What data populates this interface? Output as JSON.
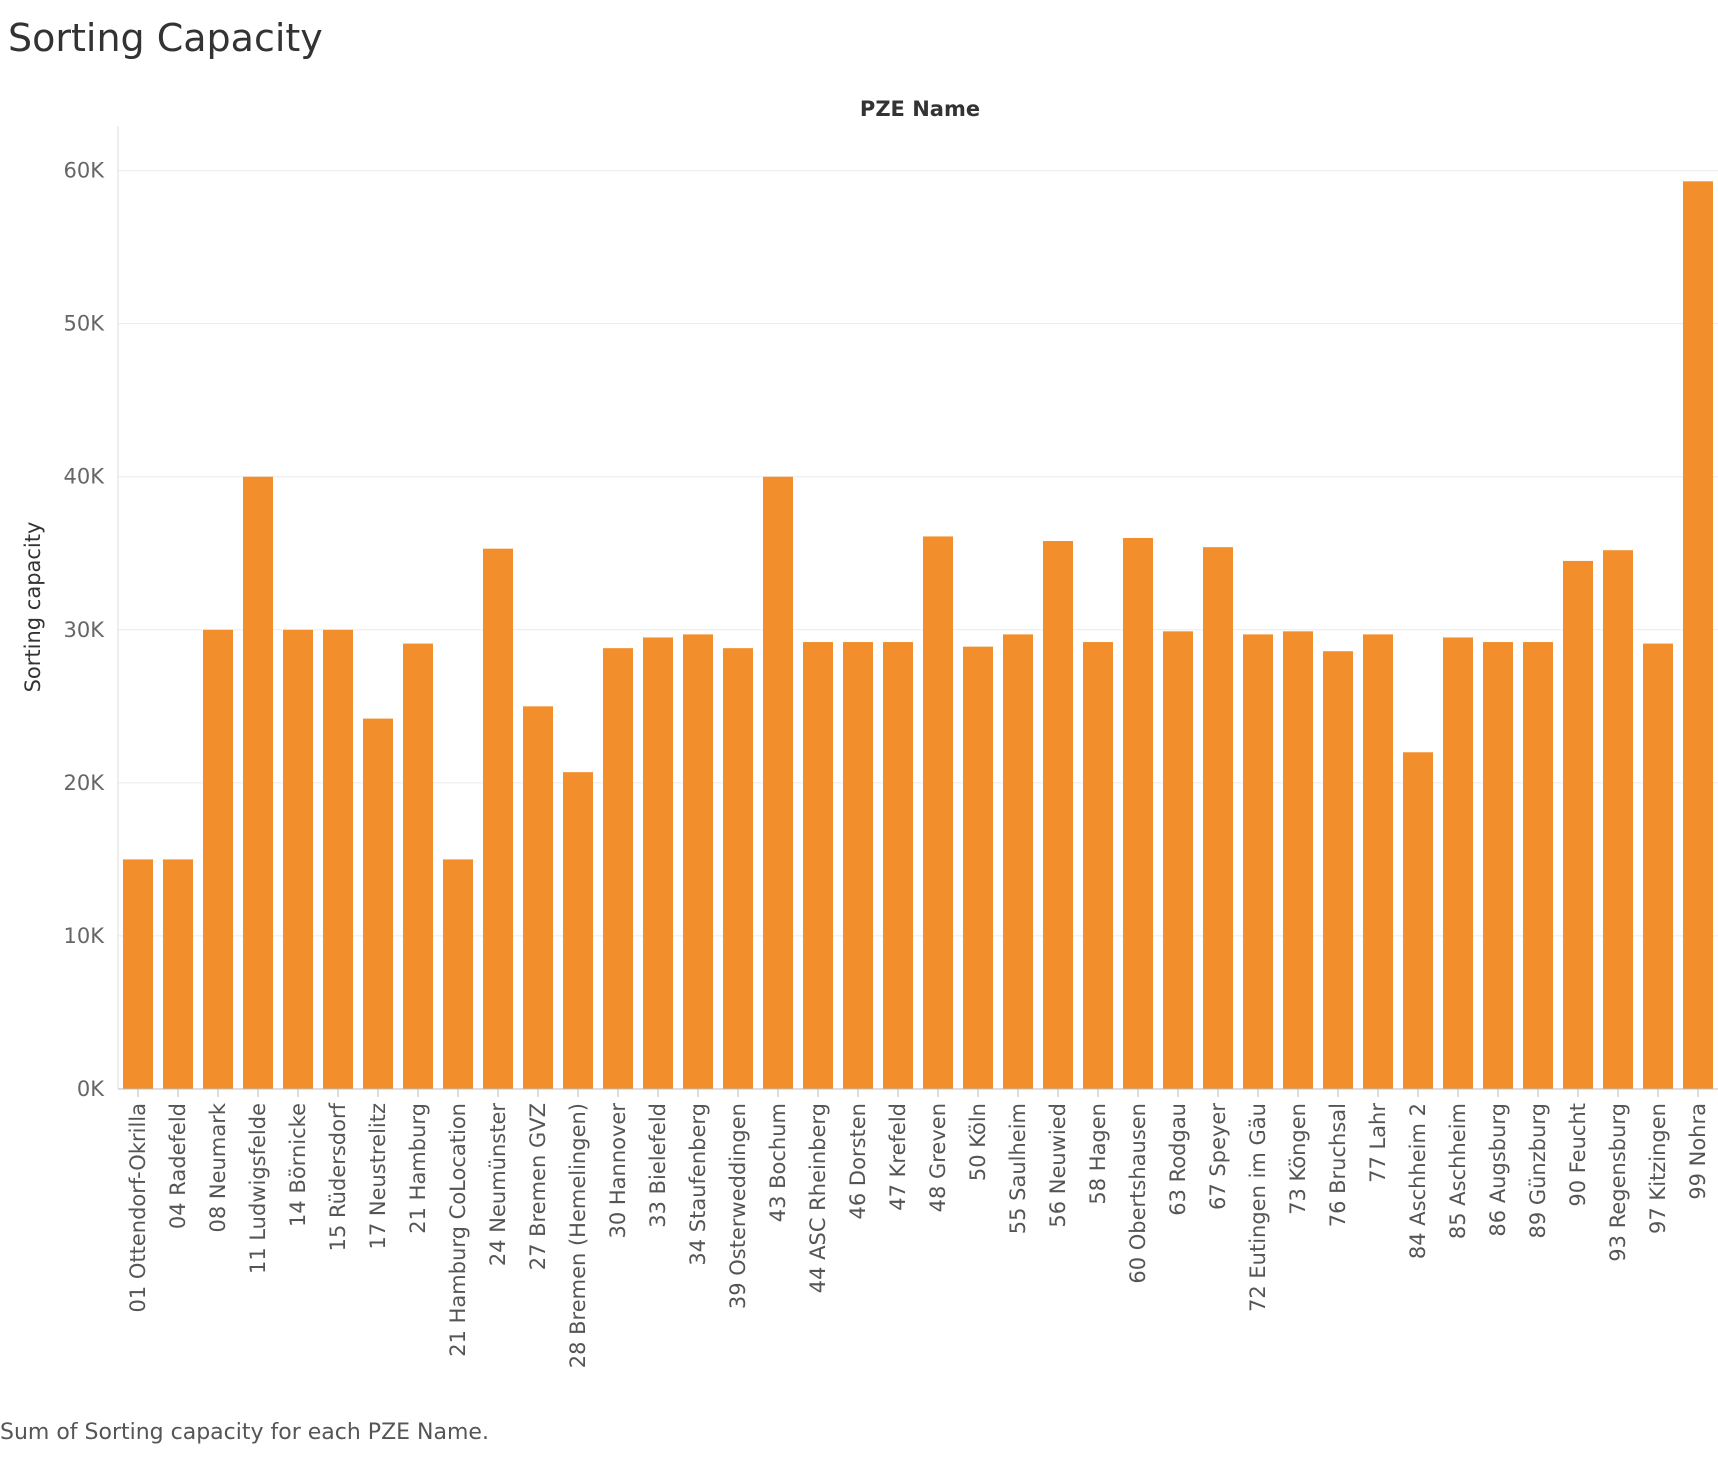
{
  "page": {
    "title": "Sorting Capacity",
    "caption": "Sum of Sorting capacity for each PZE Name."
  },
  "chart_data": {
    "type": "bar",
    "title": "Sorting Capacity",
    "column_header": "PZE Name",
    "xlabel": "PZE Name",
    "ylabel": "Sorting capacity",
    "ylim": [
      0,
      62000
    ],
    "yticks": [
      {
        "value": 0,
        "label": "0K"
      },
      {
        "value": 10000,
        "label": "10K"
      },
      {
        "value": 20000,
        "label": "20K"
      },
      {
        "value": 30000,
        "label": "30K"
      },
      {
        "value": 40000,
        "label": "40K"
      },
      {
        "value": 50000,
        "label": "50K"
      },
      {
        "value": 60000,
        "label": "60K"
      }
    ],
    "grid": true,
    "bar_color": "#F28E2B",
    "categories": [
      "01 Ottendorf-Okrilla",
      "04 Radefeld",
      "08 Neumark",
      "11 Ludwigsfelde",
      "14 Börnicke",
      "15 Rüdersdorf",
      "17 Neustrelitz",
      "21 Hamburg",
      "21 Hamburg CoLocation",
      "24 Neumünster",
      "27 Bremen GVZ",
      "28 Bremen (Hemelingen)",
      "30 Hannover",
      "33 Bielefeld",
      "34 Staufenberg",
      "39 Osterweddingen",
      "43 Bochum",
      "44 ASC Rheinberg",
      "46 Dorsten",
      "47 Krefeld",
      "48 Greven",
      "50 Köln",
      "55 Saulheim",
      "56 Neuwied",
      "58 Hagen",
      "60 Obertshausen",
      "63 Rodgau",
      "67 Speyer",
      "72 Eutingen im Gäu",
      "73 Köngen",
      "76 Bruchsal",
      "77 Lahr",
      "84 Aschheim 2",
      "85 Aschheim",
      "86 Augsburg",
      "89 Günzburg",
      "90 Feucht",
      "93 Regensburg",
      "97 Kitzingen",
      "99 Nohra"
    ],
    "values": [
      15000,
      15000,
      30000,
      40000,
      30000,
      30000,
      24200,
      29100,
      15000,
      35300,
      25000,
      20700,
      28800,
      29500,
      29700,
      28800,
      40000,
      29200,
      29200,
      29200,
      36100,
      28900,
      29700,
      35800,
      29200,
      36000,
      29900,
      35400,
      29700,
      29900,
      28600,
      29700,
      22000,
      29500,
      29200,
      29200,
      34500,
      35200,
      29100,
      59300
    ]
  }
}
